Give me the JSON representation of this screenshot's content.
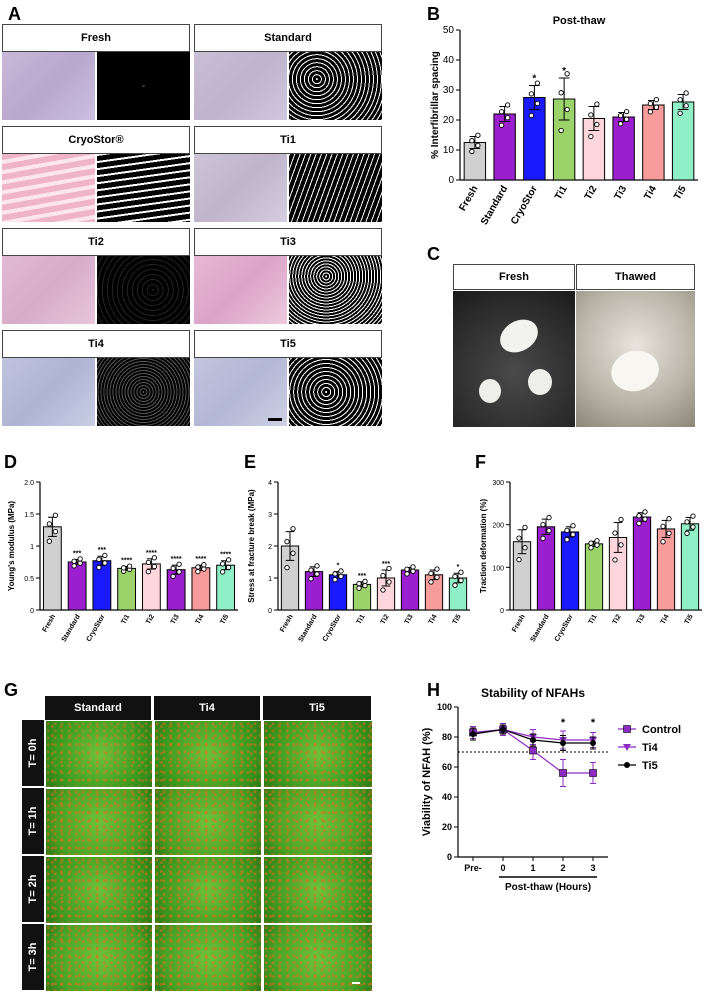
{
  "panels": {
    "a": {
      "label": "A",
      "tiles": [
        {
          "name": "Fresh"
        },
        {
          "name": "Standard"
        },
        {
          "name": "CryoStor®"
        },
        {
          "name": "Ti1"
        },
        {
          "name": "Ti2"
        },
        {
          "name": "Ti3"
        },
        {
          "name": "Ti4"
        },
        {
          "name": "Ti5"
        }
      ]
    },
    "b": {
      "label": "B"
    },
    "c": {
      "label": "C",
      "headers": [
        "Fresh",
        "Thawed"
      ]
    },
    "d": {
      "label": "D"
    },
    "e": {
      "label": "E"
    },
    "f": {
      "label": "F"
    },
    "g": {
      "label": "G",
      "columns": [
        "Standard",
        "Ti4",
        "Ti5"
      ],
      "rows": [
        "T= 0h",
        "T= 1h",
        "T= 2h",
        "T= 3h"
      ]
    },
    "h": {
      "label": "H"
    }
  },
  "colors": {
    "Fresh": "#d0d0d0",
    "Standard": "#9b1ecf",
    "CryoStor": "#1a1aff",
    "Ti1": "#9bd36a",
    "Ti2": "#ffd6dc",
    "Ti3": "#9b1ecf",
    "Ti4": "#f79b9b",
    "Ti5": "#8ff0c8"
  },
  "chart_data": [
    {
      "id": "b",
      "type": "bar",
      "title": "Post-thaw",
      "ylabel": "% Interfibrillar spacing",
      "categories": [
        "Fresh",
        "Standard",
        "CryoStor",
        "Ti1",
        "Ti2",
        "Ti3",
        "Ti4",
        "Ti5"
      ],
      "values": [
        12.5,
        22,
        27.5,
        27,
        20.5,
        21,
        25,
        26
      ],
      "errors": [
        2,
        2.5,
        4,
        7,
        4,
        1.5,
        1.5,
        2.5
      ],
      "ylim": [
        0,
        50
      ],
      "yticks": [
        0,
        10,
        20,
        30,
        40,
        50
      ],
      "annotations": [
        "",
        "",
        "*",
        "*",
        "",
        "",
        "",
        ""
      ]
    },
    {
      "id": "d",
      "type": "bar",
      "ylabel": "Young's modulus (MPa)",
      "categories": [
        "Fresh",
        "Standard",
        "CryoStor",
        "Ti1",
        "Ti2",
        "Ti3",
        "Ti4",
        "Ti5"
      ],
      "values": [
        1.3,
        0.75,
        0.77,
        0.65,
        0.72,
        0.63,
        0.66,
        0.7
      ],
      "errors": [
        0.15,
        0.04,
        0.07,
        0.03,
        0.08,
        0.07,
        0.04,
        0.07
      ],
      "ylim": [
        0,
        2.0
      ],
      "yticks": [
        0,
        0.5,
        1.0,
        1.5,
        2.0
      ],
      "ytick_labels": [
        "0",
        "0.5",
        "1",
        "1.5",
        "2.0"
      ],
      "annotations": [
        "",
        "***",
        "***",
        "****",
        "****",
        "****",
        "****",
        "****"
      ]
    },
    {
      "id": "e",
      "type": "bar",
      "ylabel": "Stress at fracture break (MPa)",
      "categories": [
        "Fresh",
        "Standard",
        "CryoStor",
        "Ti1",
        "Ti2",
        "Ti3",
        "Ti4",
        "Ti5"
      ],
      "values": [
        2.0,
        1.2,
        1.1,
        0.8,
        1.0,
        1.25,
        1.1,
        1.0
      ],
      "errors": [
        0.45,
        0.15,
        0.1,
        0.08,
        0.25,
        0.08,
        0.15,
        0.15
      ],
      "ylim": [
        0,
        4
      ],
      "yticks": [
        0,
        1,
        2,
        3,
        4
      ],
      "annotations": [
        "",
        "",
        "*",
        "***",
        "***",
        "",
        "",
        "*"
      ]
    },
    {
      "id": "f",
      "type": "bar",
      "ylabel": "Traction deformation (%)",
      "categories": [
        "Fresh",
        "Standard",
        "CryoStor",
        "Ti1",
        "Ti2",
        "Ti3",
        "Ti4",
        "Ti5"
      ],
      "values": [
        160,
        195,
        183,
        155,
        170,
        218,
        190,
        202
      ],
      "errors": [
        28,
        18,
        12,
        6,
        35,
        10,
        20,
        15
      ],
      "ylim": [
        0,
        300
      ],
      "yticks": [
        0,
        100,
        200,
        300
      ],
      "annotations": [
        "",
        "",
        "",
        "",
        "",
        "",
        "",
        ""
      ]
    },
    {
      "id": "h",
      "type": "line",
      "title": "Stability of NFAHs",
      "ylabel": "Viability of NFAH (%)",
      "xlabel": "Post-thaw (Hours)",
      "categories": [
        "Pre-",
        "0",
        "1",
        "2",
        "3"
      ],
      "ylim": [
        0,
        100
      ],
      "yticks": [
        0,
        20,
        40,
        60,
        80,
        100
      ],
      "threshold": 70,
      "series": [
        {
          "name": "Control",
          "values": [
            83,
            85,
            71,
            56,
            56
          ],
          "errors": [
            4,
            4,
            6,
            9,
            7
          ],
          "marker": "square",
          "color": "#8e2bc5"
        },
        {
          "name": "Ti4",
          "values": [
            82,
            85,
            80,
            78,
            78
          ],
          "errors": [
            4,
            3,
            5,
            6,
            5
          ],
          "marker": "triangle-down",
          "color": "#8e2bc5"
        },
        {
          "name": "Ti5",
          "values": [
            82,
            85,
            78,
            76,
            76
          ],
          "errors": [
            4,
            3,
            4,
            5,
            4
          ],
          "marker": "circle",
          "color": "#000000"
        }
      ],
      "annotations": [
        "",
        "",
        "",
        "*",
        "*"
      ]
    }
  ]
}
